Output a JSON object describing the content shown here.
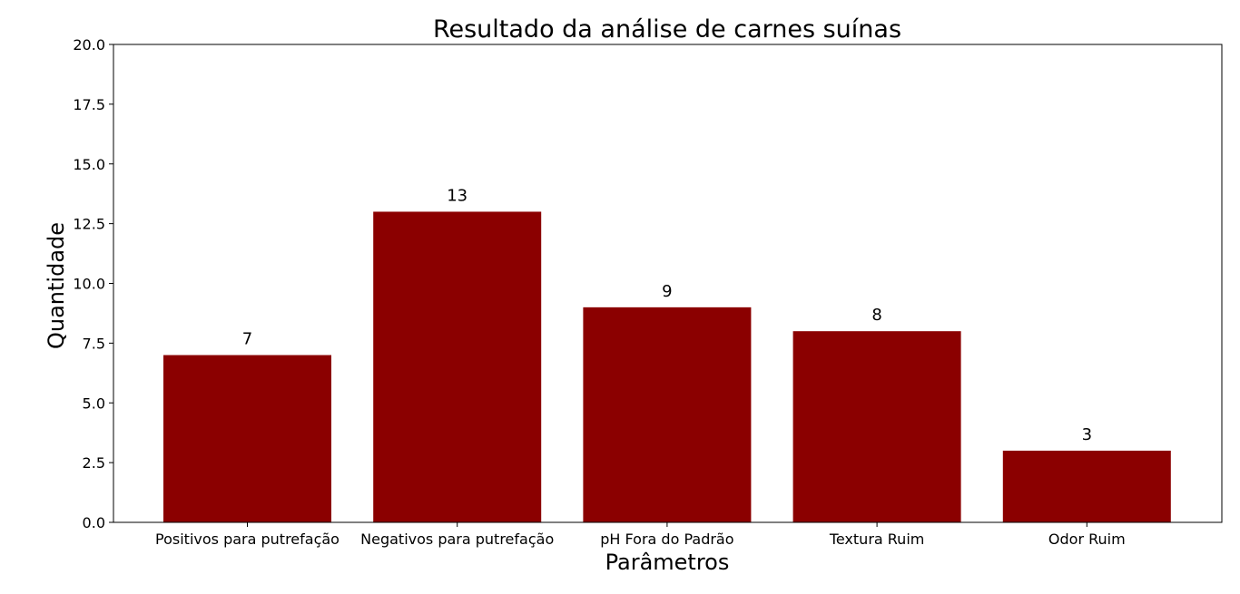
{
  "chart_data": {
    "type": "bar",
    "title": "Resultado da análise de carnes suínas",
    "xlabel": "Parâmetros",
    "ylabel": "Quantidade",
    "categories": [
      "Positivos para putrefação",
      "Negativos para putrefação",
      "pH Fora do Padrão",
      "Textura Ruim",
      "Odor Ruim"
    ],
    "values": [
      7,
      13,
      9,
      8,
      3
    ],
    "data_labels": [
      "7",
      "13",
      "9",
      "8",
      "3"
    ],
    "ylim": [
      0,
      20
    ],
    "yticks": [
      0,
      2.5,
      5,
      7.5,
      10,
      12.5,
      15,
      17.5,
      20
    ],
    "ytick_labels": [
      "0.0",
      "2.5",
      "5.0",
      "7.5",
      "10.0",
      "12.5",
      "15.0",
      "17.5",
      "20.0"
    ],
    "grid": false,
    "legend": "none",
    "bar_color": "#8b0000",
    "axis_color": "#000000"
  }
}
